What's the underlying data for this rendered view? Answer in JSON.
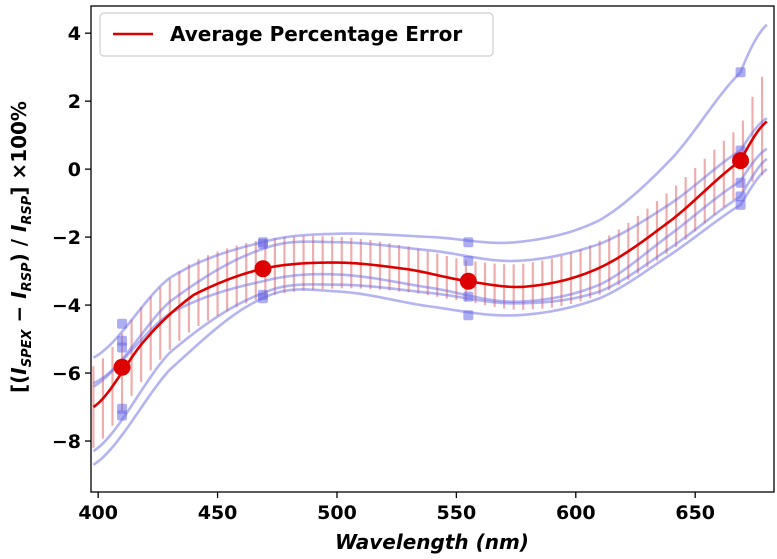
{
  "chart_data": {
    "type": "line",
    "title": "",
    "xlabel": "Wavelength (nm)",
    "ylabel": "[(I_SPEX − I_RSP) / I_RSP] ×100%",
    "xlim": [
      397,
      683
    ],
    "ylim": [
      -9.5,
      4.8
    ],
    "x_ticks": [
      400,
      450,
      500,
      550,
      600,
      650
    ],
    "y_ticks": [
      -8,
      -6,
      -4,
      -2,
      0,
      2,
      4
    ],
    "y_tick_labels": [
      "−8",
      "−6",
      "−4",
      "−2",
      "0",
      "2",
      "4"
    ],
    "x_tick_labels": [
      "400",
      "450",
      "500",
      "550",
      "600",
      "650"
    ],
    "legend": {
      "position": "top-left",
      "entries": [
        "Average Percentage Error"
      ]
    },
    "grid": false,
    "colors": {
      "average": "#dd0000",
      "individual": "#6a6ae6",
      "errorbar": "#e47878"
    },
    "series": [
      {
        "name": "Average Percentage Error",
        "kind": "average-fit",
        "x": [
          398,
          420,
          440,
          469,
          500,
          530,
          555,
          580,
          610,
          640,
          669,
          680
        ],
        "y": [
          -7.0,
          -5.0,
          -3.7,
          -2.93,
          -2.75,
          -2.95,
          -3.3,
          -3.45,
          -2.9,
          -1.5,
          0.25,
          1.4
        ]
      },
      {
        "kind": "average-points",
        "x": [
          410,
          469,
          555,
          669
        ],
        "y": [
          -5.83,
          -2.93,
          -3.3,
          0.25
        ]
      },
      {
        "kind": "individual-fit",
        "x": [
          398,
          430,
          469,
          500,
          540,
          575,
          610,
          640,
          669,
          680
        ],
        "y": [
          -5.55,
          -3.2,
          -2.15,
          -1.9,
          -2.0,
          -2.15,
          -1.5,
          0.3,
          2.85,
          4.25
        ]
      },
      {
        "kind": "individual-fit",
        "x": [
          398,
          430,
          469,
          500,
          540,
          575,
          610,
          640,
          669,
          680
        ],
        "y": [
          -6.4,
          -3.9,
          -2.35,
          -2.15,
          -2.4,
          -2.7,
          -2.2,
          -1.0,
          0.55,
          1.5
        ]
      },
      {
        "kind": "individual-fit",
        "x": [
          398,
          430,
          469,
          500,
          540,
          575,
          610,
          640,
          669,
          680
        ],
        "y": [
          -6.3,
          -4.25,
          -3.3,
          -3.1,
          -3.5,
          -3.9,
          -3.4,
          -1.9,
          -0.35,
          0.6
        ]
      },
      {
        "kind": "individual-fit",
        "x": [
          398,
          430,
          469,
          500,
          540,
          575,
          610,
          640,
          669,
          680
        ],
        "y": [
          -8.3,
          -5.4,
          -3.65,
          -3.4,
          -3.65,
          -3.95,
          -3.6,
          -2.3,
          -0.8,
          0.3
        ]
      },
      {
        "kind": "individual-fit",
        "x": [
          398,
          430,
          469,
          500,
          540,
          575,
          610,
          640,
          669,
          680
        ],
        "y": [
          -8.7,
          -5.9,
          -3.8,
          -3.6,
          -4.05,
          -4.3,
          -3.8,
          -2.5,
          -1.05,
          0.0
        ]
      },
      {
        "kind": "individual-points",
        "x": [
          410,
          410,
          410,
          410,
          410,
          469,
          469,
          469,
          469,
          555,
          555,
          555,
          555,
          669,
          669,
          669,
          669,
          669
        ],
        "y": [
          -4.55,
          -5.05,
          -5.25,
          -7.05,
          -7.25,
          -2.15,
          -2.2,
          -3.7,
          -3.8,
          -2.15,
          -2.7,
          -3.75,
          -4.3,
          2.85,
          0.55,
          -0.4,
          -0.8,
          -1.05
        ]
      }
    ],
    "error_bars": {
      "x_start": 398,
      "x_end": 680,
      "x_step": 4,
      "half_width_at": {
        "x": [
          398,
          470,
          555,
          669,
          680
        ],
        "h": [
          1.2,
          0.85,
          0.6,
          1.0,
          1.55
        ]
      }
    }
  }
}
